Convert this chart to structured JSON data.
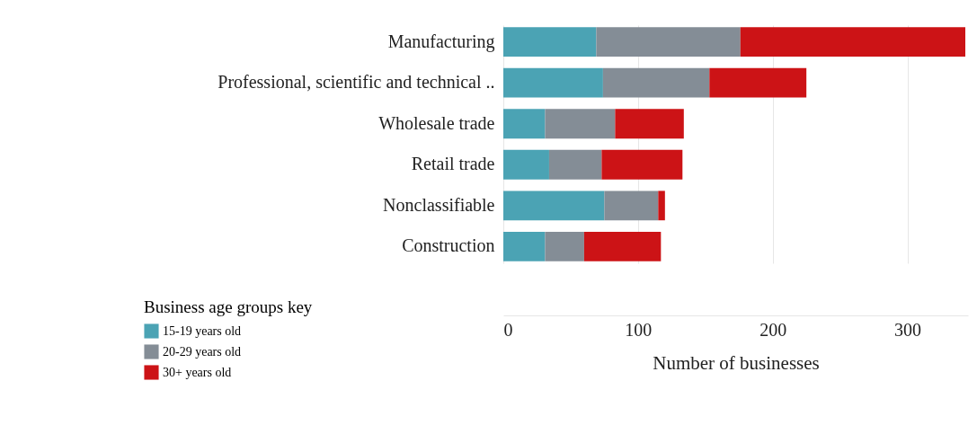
{
  "chart_data": {
    "type": "bar",
    "orientation": "horizontal",
    "stacked": true,
    "categories": [
      "Manufacturing",
      "Professional, scientific and technical ..",
      "Wholesale trade",
      "Retail trade",
      "Nonclassifiable",
      "Construction"
    ],
    "series": [
      {
        "name": "15-19 years old",
        "color": "#4ba3b4",
        "values": [
          69,
          74,
          31,
          34,
          75,
          31
        ]
      },
      {
        "name": "20-29 years old",
        "color": "#848d96",
        "values": [
          107,
          79,
          52,
          39,
          40,
          29
        ]
      },
      {
        "name": "30+ years old",
        "color": "#cc1316",
        "values": [
          167,
          72,
          51,
          60,
          5,
          57
        ]
      }
    ],
    "xlabel": "Number of businesses",
    "legend_title": "Business age groups key",
    "legend": "bottom left",
    "xlim": [
      0,
      345
    ],
    "xticks": [
      0,
      100,
      200,
      300
    ],
    "grid": "x"
  }
}
